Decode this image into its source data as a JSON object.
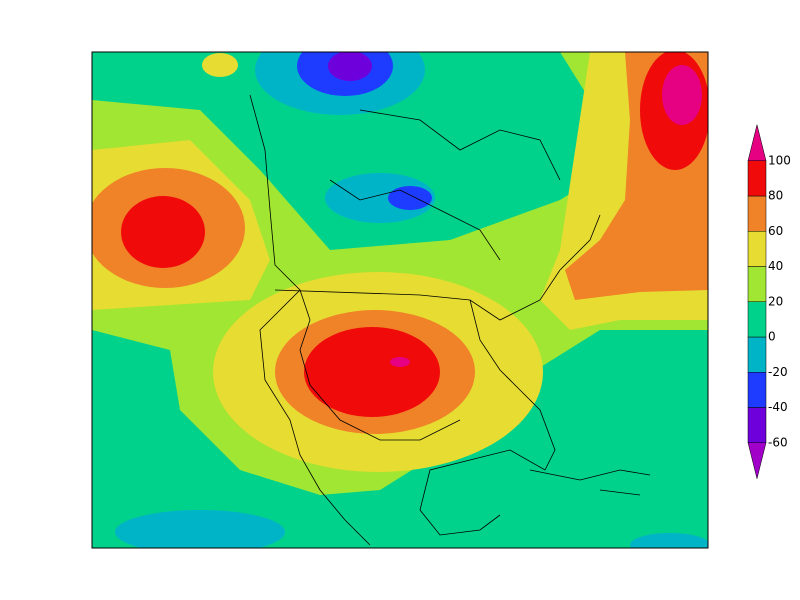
{
  "colorbar": {
    "levels": [
      -60,
      -40,
      -20,
      0,
      20,
      40,
      60,
      80,
      100
    ],
    "colors": [
      "#a000c8",
      "#6e00dc",
      "#1e3cff",
      "#00b4c8",
      "#00d28c",
      "#a0e632",
      "#e6dc32",
      "#f08228",
      "#f00a0a",
      "#e60082"
    ]
  }
}
